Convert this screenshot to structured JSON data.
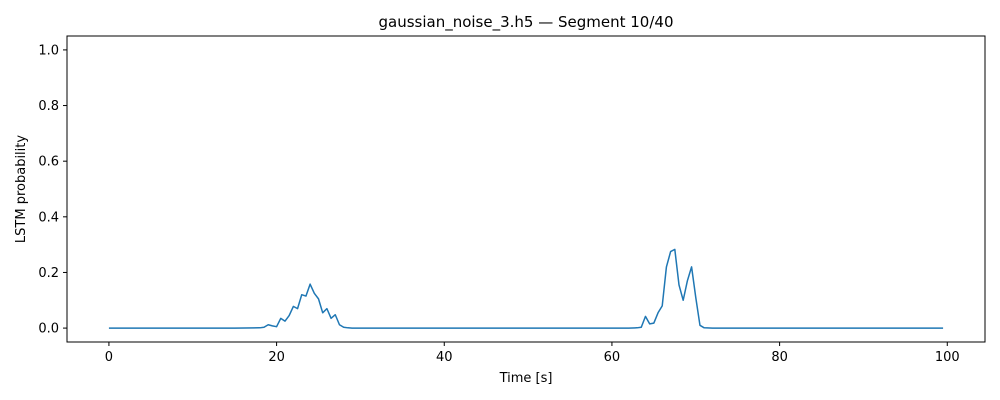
{
  "chart_data": {
    "type": "line",
    "title": "gaussian_noise_3.h5 — Segment 10/40",
    "xlabel": "Time [s]",
    "ylabel": "LSTM probability",
    "xlim": [
      -5,
      104.5
    ],
    "ylim": [
      -0.05,
      1.05
    ],
    "xticks": [
      0,
      20,
      40,
      60,
      80,
      100
    ],
    "yticks": [
      0.0,
      0.2,
      0.4,
      0.6,
      0.8,
      1.0
    ],
    "xtick_labels": [
      "0",
      "20",
      "40",
      "60",
      "80",
      "100"
    ],
    "ytick_labels": [
      "0.0",
      "0.2",
      "0.4",
      "0.6",
      "0.8",
      "1.0"
    ],
    "grid": false,
    "series": [
      {
        "color": "#1f77b4",
        "x": [
          0,
          5,
          10,
          15,
          18,
          18.5,
          19,
          19.5,
          20,
          20.5,
          21,
          21.5,
          22,
          22.5,
          23,
          23.5,
          24,
          24.5,
          25,
          25.5,
          26,
          26.5,
          27,
          27.5,
          28,
          28.5,
          29,
          30,
          40,
          50,
          60,
          62,
          63,
          63.5,
          64,
          64.5,
          65,
          65.5,
          66,
          66.5,
          67,
          67.5,
          68,
          68.5,
          69,
          69.5,
          70,
          70.5,
          71,
          72,
          80,
          90,
          99.5
        ],
        "y": [
          0,
          0,
          0,
          0,
          0.001,
          0.003,
          0.012,
          0.008,
          0.005,
          0.035,
          0.025,
          0.045,
          0.078,
          0.07,
          0.12,
          0.115,
          0.158,
          0.125,
          0.105,
          0.055,
          0.07,
          0.035,
          0.048,
          0.012,
          0.003,
          0.001,
          0,
          0,
          0,
          0,
          0,
          0,
          0.001,
          0.003,
          0.042,
          0.015,
          0.018,
          0.055,
          0.08,
          0.22,
          0.275,
          0.283,
          0.155,
          0.1,
          0.17,
          0.22,
          0.11,
          0.01,
          0.001,
          0,
          0,
          0,
          0
        ]
      }
    ]
  }
}
